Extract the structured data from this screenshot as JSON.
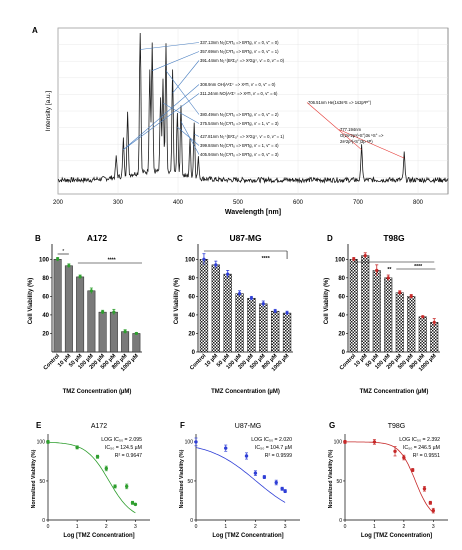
{
  "colors": {
    "spectrum_line": "#1a1a1a",
    "annotation_line": "#4a7fc1",
    "annotation_line_highlight": "#e53935",
    "bar_A172": "#7a7a7a",
    "marker_A172": "#2e9e2e",
    "bar_U87": "#dfe3ec",
    "marker_U87": "#2f3fd6",
    "bar_T98G": "#cfcfcf",
    "marker_T98G": "#c62828"
  },
  "chart_data": [
    {
      "panel": "A",
      "type": "line",
      "xlabel": "Wavelength [nm]",
      "ylabel": "Intensity [a.u.]",
      "xlim": [
        200,
        850
      ],
      "xticks": [
        "200",
        "300",
        "400",
        "500",
        "600",
        "700",
        "800"
      ],
      "grid": true,
      "peaks": [
        {
          "x": 297,
          "y": 0.12
        },
        {
          "x": 309,
          "y": 0.22
        },
        {
          "x": 316,
          "y": 0.38
        },
        {
          "x": 337,
          "y": 0.93
        },
        {
          "x": 353,
          "y": 0.62
        },
        {
          "x": 357,
          "y": 0.78
        },
        {
          "x": 371,
          "y": 0.45
        },
        {
          "x": 375,
          "y": 0.55
        },
        {
          "x": 380,
          "y": 0.78
        },
        {
          "x": 391,
          "y": 0.62
        },
        {
          "x": 399,
          "y": 0.38
        },
        {
          "x": 405,
          "y": 0.42
        },
        {
          "x": 420,
          "y": 0.22
        },
        {
          "x": 427,
          "y": 0.33
        },
        {
          "x": 434,
          "y": 0.12
        },
        {
          "x": 706,
          "y": 0.22
        },
        {
          "x": 777,
          "y": 0.16
        }
      ],
      "annotations": [
        {
          "text": "337.13nm N₂(C³Πᵤ => B³Πg, v' = 0, v'' = 0)",
          "x": 337
        },
        {
          "text": "357.69nm N₂(C³Πᵤ => B³Πg, v' = 0, v'' = 1)",
          "x": 357
        },
        {
          "text": "391.44nm N₂⁺(B²Σᵤ⁺ => X²Σg⁺, v' = 0, v'' = 0)",
          "x": 391
        },
        {
          "text": "308.9nm OH(A²Σ⁺ => X²Π, v' = 0, v'' = 0)",
          "x": 309
        },
        {
          "text": "311.24nm NO(A²Σ⁺ => X²Π, v' = 0, v'' = 6)",
          "x": 311
        },
        {
          "text": "706.51nm He(1s3s³S => 1s2p³P°)",
          "x": 706
        },
        {
          "text": "380.49nm N₂(C³Πᵤ => B³Πg, v' = 0, v'' = 2)",
          "x": 380
        },
        {
          "text": "375.54nm N₂(C³Πᵤ => B³Πg, v' = 1, v'' = 3)",
          "x": 375
        },
        {
          "text": "427.81nm N₂⁺(B²Σᵤ⁺ => X²Σg⁺, v' = 0, v'' = 1)",
          "x": 427
        },
        {
          "text": "399.84nm N₂(C³Πᵤ => B³Πg, v' = 1, v'' = 4)",
          "x": 399
        },
        {
          "text": "405.94nm N₂(C³Πᵤ => B³Πg, v' = 0, v'' = 3)",
          "x": 405
        },
        {
          "text": "777.194nm",
          "x": 777
        },
        {
          "text": "O(2s²2p³(⁴S°)3s ⁵S° =>",
          "x": 777
        },
        {
          "text": "2s²2p³(⁴S°)3p ⁵P)",
          "x": 777
        }
      ]
    },
    {
      "panel": "B",
      "type": "bar",
      "title": "A172",
      "xlabel": "TMZ Concentration (µM)",
      "ylabel": "Cell Viability (%)",
      "categories": [
        "Control",
        "10 µM",
        "50 µM",
        "100 µM",
        "200 µM",
        "500 µM",
        "800 µM",
        "1000 µM"
      ],
      "values": [
        100,
        93,
        81,
        66,
        43,
        43,
        22,
        20
      ],
      "errors": [
        2,
        2,
        2,
        3,
        2,
        3,
        2,
        1
      ],
      "ylim": [
        0,
        110
      ],
      "yticks": [
        "20",
        "40",
        "60",
        "80",
        "100"
      ],
      "significance": [
        "*",
        "****"
      ]
    },
    {
      "panel": "C",
      "type": "bar",
      "title": "U87-MG",
      "xlabel": "TMZ Concentration (µM)",
      "ylabel": "Cell Viability (%)",
      "categories": [
        "Control",
        "10 µM",
        "50 µM",
        "100 µM",
        "200 µM",
        "500 µM",
        "800 µM",
        "1000 µM"
      ],
      "values": [
        100,
        94,
        84,
        63,
        58,
        52,
        44,
        42
      ],
      "errors": [
        6,
        4,
        4,
        3,
        2,
        3,
        2,
        2
      ],
      "ylim": [
        0,
        110
      ],
      "yticks": [
        "0",
        "20",
        "40",
        "60",
        "80",
        "100"
      ],
      "significance": [
        "****"
      ]
    },
    {
      "panel": "D",
      "type": "bar",
      "title": "T98G",
      "xlabel": "TMZ Concentration (µM)",
      "ylabel": "Cell Viability (%)",
      "categories": [
        "Control",
        "10 µM",
        "50 µM",
        "100 µM",
        "200 µM",
        "500 µM",
        "800 µM",
        "1000 µM"
      ],
      "values": [
        100,
        104,
        88,
        80,
        64,
        60,
        38,
        32
      ],
      "errors": [
        2,
        3,
        6,
        3,
        2,
        2,
        1,
        4
      ],
      "ylim": [
        0,
        110
      ],
      "yticks": [
        "0",
        "20",
        "40",
        "60",
        "80",
        "100"
      ],
      "significance": [
        "**",
        "****"
      ]
    },
    {
      "panel": "E",
      "type": "scatter",
      "title": "A172",
      "xlabel": "Log [TMZ Concentration]",
      "ylabel": "Normalized Viability (%)",
      "x": [
        0,
        1,
        1.7,
        2.0,
        2.3,
        2.7,
        2.9,
        3.0
      ],
      "y": [
        100,
        93,
        81,
        66,
        43,
        43,
        22,
        20
      ],
      "errors": [
        2,
        2,
        2,
        3,
        2,
        3,
        2,
        1
      ],
      "fit": {
        "logIC50": 2.095,
        "top": 100,
        "bottom": 0,
        "hill": 1.1
      },
      "xlim": [
        0,
        3.5
      ],
      "ylim": [
        0,
        105
      ],
      "xticks": [
        "0",
        "1",
        "2",
        "3"
      ],
      "yticks": [
        "0",
        "50",
        "100"
      ],
      "stats": [
        "LOG IC₅₀ = 2.095",
        "IC₅₀ = 124.5 µM",
        "R² = 0.9647"
      ]
    },
    {
      "panel": "F",
      "type": "scatter",
      "title": "U87-MG",
      "xlabel": "Log [TMZ Concentration]",
      "ylabel": "Normalized Viability (%)",
      "x": [
        0,
        1,
        1.7,
        2.0,
        2.3,
        2.7,
        2.9,
        3.0
      ],
      "y": [
        100,
        92,
        82,
        60,
        55,
        48,
        40,
        37
      ],
      "errors": [
        5,
        4,
        4,
        3,
        2,
        3,
        2,
        2
      ],
      "fit": {
        "logIC50": 2.02,
        "top": 100,
        "bottom": 0,
        "hill": 0.55
      },
      "xlim": [
        0,
        3.5
      ],
      "ylim": [
        0,
        105
      ],
      "xticks": [
        "0",
        "1",
        "2",
        "3"
      ],
      "yticks": [
        "0",
        "50",
        "100"
      ],
      "stats": [
        "LOG IC₅₀ = 2.020",
        "IC₅₀ = 104.7 µM",
        "R² = 0.9599"
      ]
    },
    {
      "panel": "G",
      "type": "scatter",
      "title": "T98G",
      "xlabel": "Log [TMZ Concentration]",
      "ylabel": "Normalized Viability (%)",
      "x": [
        0,
        1,
        1.7,
        2.0,
        2.3,
        2.7,
        2.9,
        3.0
      ],
      "y": [
        100,
        100,
        88,
        80,
        64,
        40,
        22,
        12
      ],
      "errors": [
        2,
        3,
        6,
        3,
        2,
        3,
        2,
        3
      ],
      "fit": {
        "logIC50": 2.392,
        "top": 100,
        "bottom": 0,
        "hill": 1.6
      },
      "xlim": [
        0,
        3.5
      ],
      "ylim": [
        0,
        105
      ],
      "xticks": [
        "0",
        "1",
        "2",
        "3"
      ],
      "yticks": [
        "0",
        "50",
        "100"
      ],
      "stats": [
        "LOG IC₅₀ = 2.392",
        "IC₅₀ = 246.5 µM",
        "R² = 0.9551"
      ]
    }
  ]
}
